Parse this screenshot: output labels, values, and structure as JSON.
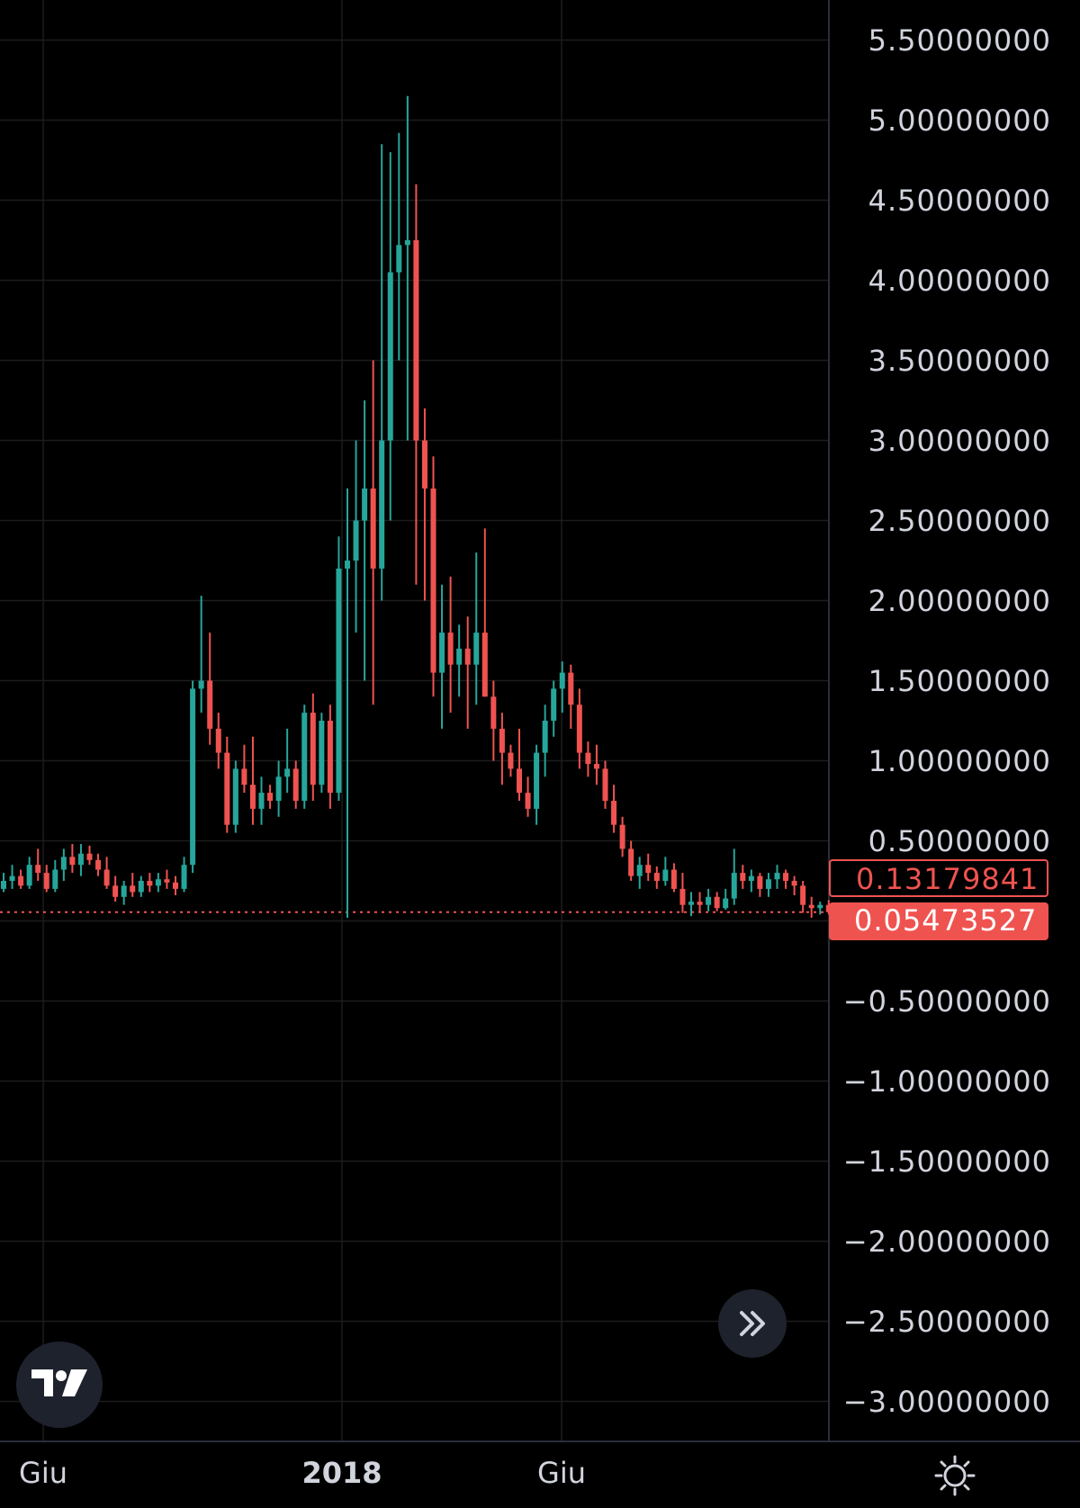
{
  "chart_data": {
    "type": "candlestick",
    "price_axis": {
      "ticks": [
        "5.50000000",
        "5.00000000",
        "4.50000000",
        "4.00000000",
        "3.50000000",
        "3.00000000",
        "2.50000000",
        "2.00000000",
        "1.50000000",
        "1.00000000",
        "0.50000000",
        "−0.50000000",
        "−1.00000000",
        "−1.50000000",
        "−2.00000000",
        "−2.50000000",
        "−3.00000000"
      ],
      "range": [
        -3.25,
        5.75
      ]
    },
    "time_axis": {
      "labels": [
        {
          "text": "Giu",
          "bold": false
        },
        {
          "text": "2018",
          "bold": true
        },
        {
          "text": "Giu",
          "bold": false
        }
      ]
    },
    "high_price_tag": "0.13179841",
    "last_price_tag": "0.05473527",
    "last_price": 0.0547,
    "colors": {
      "up": "#26a69a",
      "down": "#ef5350",
      "grid": "#1c1c1c",
      "background": "#000000"
    },
    "candles": [
      [
        0.2,
        0.3,
        0.18,
        0.25
      ],
      [
        0.25,
        0.35,
        0.2,
        0.28
      ],
      [
        0.28,
        0.32,
        0.2,
        0.22
      ],
      [
        0.22,
        0.4,
        0.2,
        0.35
      ],
      [
        0.35,
        0.45,
        0.25,
        0.3
      ],
      [
        0.3,
        0.35,
        0.18,
        0.2
      ],
      [
        0.2,
        0.38,
        0.18,
        0.32
      ],
      [
        0.32,
        0.45,
        0.25,
        0.4
      ],
      [
        0.4,
        0.48,
        0.3,
        0.35
      ],
      [
        0.35,
        0.48,
        0.28,
        0.42
      ],
      [
        0.42,
        0.47,
        0.35,
        0.38
      ],
      [
        0.38,
        0.42,
        0.28,
        0.32
      ],
      [
        0.32,
        0.4,
        0.2,
        0.22
      ],
      [
        0.22,
        0.28,
        0.12,
        0.15
      ],
      [
        0.15,
        0.25,
        0.1,
        0.22
      ],
      [
        0.22,
        0.3,
        0.15,
        0.18
      ],
      [
        0.18,
        0.28,
        0.15,
        0.25
      ],
      [
        0.25,
        0.3,
        0.18,
        0.22
      ],
      [
        0.22,
        0.3,
        0.18,
        0.26
      ],
      [
        0.26,
        0.32,
        0.2,
        0.24
      ],
      [
        0.24,
        0.28,
        0.16,
        0.2
      ],
      [
        0.2,
        0.4,
        0.18,
        0.35
      ],
      [
        0.35,
        1.5,
        0.3,
        1.45
      ],
      [
        1.45,
        2.03,
        1.3,
        1.5
      ],
      [
        1.5,
        1.8,
        1.1,
        1.2
      ],
      [
        1.2,
        1.3,
        0.95,
        1.05
      ],
      [
        1.05,
        1.15,
        0.55,
        0.6
      ],
      [
        0.6,
        1.0,
        0.55,
        0.95
      ],
      [
        0.95,
        1.1,
        0.8,
        0.85
      ],
      [
        0.85,
        1.15,
        0.6,
        0.7
      ],
      [
        0.7,
        0.9,
        0.6,
        0.8
      ],
      [
        0.8,
        0.85,
        0.7,
        0.75
      ],
      [
        0.75,
        1.0,
        0.65,
        0.9
      ],
      [
        0.9,
        1.2,
        0.8,
        0.95
      ],
      [
        0.95,
        1.0,
        0.7,
        0.75
      ],
      [
        0.75,
        1.35,
        0.7,
        1.3
      ],
      [
        1.3,
        1.42,
        0.75,
        0.85
      ],
      [
        0.85,
        1.3,
        0.8,
        1.25
      ],
      [
        1.25,
        1.35,
        0.7,
        0.8
      ],
      [
        0.8,
        2.4,
        0.75,
        2.2
      ],
      [
        2.2,
        2.7,
        0.02,
        2.25
      ],
      [
        2.25,
        3.0,
        1.8,
        2.5
      ],
      [
        2.5,
        3.25,
        1.5,
        2.7
      ],
      [
        2.7,
        3.5,
        1.35,
        2.2
      ],
      [
        2.2,
        4.85,
        2.0,
        3.0
      ],
      [
        3.0,
        4.8,
        2.5,
        4.05
      ],
      [
        4.05,
        4.92,
        3.5,
        4.22
      ],
      [
        4.22,
        5.15,
        3.0,
        4.25
      ],
      [
        4.25,
        4.6,
        2.1,
        3.0
      ],
      [
        3.0,
        3.2,
        2.0,
        2.7
      ],
      [
        2.7,
        2.9,
        1.4,
        1.55
      ],
      [
        1.55,
        2.1,
        1.2,
        1.8
      ],
      [
        1.8,
        2.15,
        1.3,
        1.6
      ],
      [
        1.6,
        1.85,
        1.4,
        1.7
      ],
      [
        1.7,
        1.9,
        1.2,
        1.6
      ],
      [
        1.6,
        2.3,
        1.35,
        1.8
      ],
      [
        1.8,
        2.45,
        1.4,
        1.4
      ],
      [
        1.4,
        1.5,
        1.0,
        1.2
      ],
      [
        1.2,
        1.3,
        0.85,
        1.05
      ],
      [
        1.05,
        1.1,
        0.9,
        0.95
      ],
      [
        0.95,
        1.2,
        0.75,
        0.8
      ],
      [
        0.8,
        0.9,
        0.65,
        0.7
      ],
      [
        0.7,
        1.1,
        0.6,
        1.05
      ],
      [
        1.05,
        1.35,
        0.9,
        1.25
      ],
      [
        1.25,
        1.5,
        1.15,
        1.45
      ],
      [
        1.45,
        1.62,
        1.3,
        1.55
      ],
      [
        1.55,
        1.6,
        1.2,
        1.35
      ],
      [
        1.35,
        1.45,
        0.95,
        1.05
      ],
      [
        1.05,
        1.12,
        0.9,
        0.98
      ],
      [
        0.98,
        1.1,
        0.85,
        0.95
      ],
      [
        0.95,
        1.0,
        0.7,
        0.75
      ],
      [
        0.75,
        0.85,
        0.55,
        0.6
      ],
      [
        0.6,
        0.65,
        0.4,
        0.45
      ],
      [
        0.45,
        0.5,
        0.25,
        0.28
      ],
      [
        0.28,
        0.4,
        0.2,
        0.35
      ],
      [
        0.35,
        0.42,
        0.25,
        0.3
      ],
      [
        0.3,
        0.34,
        0.2,
        0.25
      ],
      [
        0.25,
        0.4,
        0.22,
        0.32
      ],
      [
        0.32,
        0.36,
        0.18,
        0.2
      ],
      [
        0.2,
        0.3,
        0.05,
        0.1
      ],
      [
        0.1,
        0.18,
        0.03,
        0.12
      ],
      [
        0.12,
        0.18,
        0.05,
        0.1
      ],
      [
        0.1,
        0.2,
        0.06,
        0.15
      ],
      [
        0.15,
        0.18,
        0.06,
        0.08
      ],
      [
        0.08,
        0.2,
        0.07,
        0.14
      ],
      [
        0.14,
        0.45,
        0.1,
        0.3
      ],
      [
        0.3,
        0.35,
        0.2,
        0.25
      ],
      [
        0.25,
        0.32,
        0.18,
        0.28
      ],
      [
        0.28,
        0.3,
        0.15,
        0.2
      ],
      [
        0.2,
        0.3,
        0.15,
        0.26
      ],
      [
        0.26,
        0.35,
        0.2,
        0.3
      ],
      [
        0.3,
        0.32,
        0.2,
        0.25
      ],
      [
        0.25,
        0.28,
        0.16,
        0.22
      ],
      [
        0.22,
        0.25,
        0.05,
        0.1
      ],
      [
        0.1,
        0.15,
        0.02,
        0.08
      ],
      [
        0.08,
        0.12,
        0.04,
        0.1
      ],
      [
        0.1,
        0.13,
        0.04,
        0.055
      ]
    ]
  }
}
